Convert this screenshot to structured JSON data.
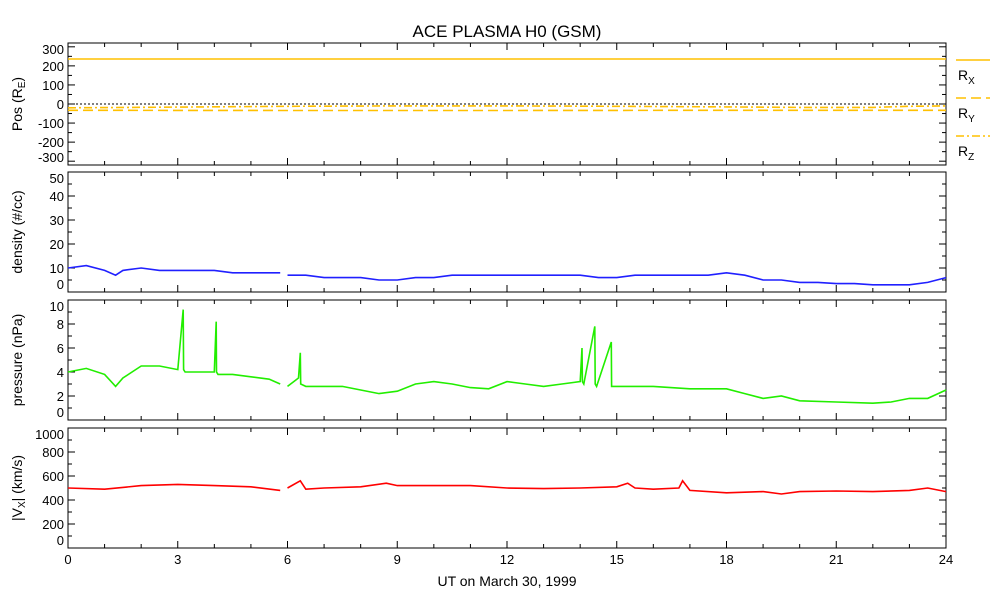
{
  "title": "ACE PLASMA H0 (GSM)",
  "xlabel": "UT on March 30, 1999",
  "chart_data": [
    {
      "type": "line",
      "ylabel": "Pos (R",
      "ylabel_sub": "E",
      "ylabel_end": ")",
      "ylim": [
        -320,
        320
      ],
      "yticks": [
        300,
        200,
        100,
        0,
        -100,
        -200,
        -300
      ],
      "xlim": [
        0,
        24
      ],
      "xticks": [
        0,
        3,
        6,
        9,
        12,
        15,
        18,
        21,
        24
      ],
      "legend_placement": "right",
      "zero_line": true,
      "series": [
        {
          "name": "R",
          "sub": "X",
          "style": "solid",
          "color": "#ffc000",
          "x": [
            0,
            24
          ],
          "y": [
            236,
            236
          ]
        },
        {
          "name": "R",
          "sub": "Y",
          "style": "dashed",
          "color": "#ffc000",
          "x": [
            0,
            6,
            12,
            18,
            24
          ],
          "y": [
            -33,
            -34,
            -34,
            -33,
            -33
          ]
        },
        {
          "name": "R",
          "sub": "Z",
          "style": "dashdot",
          "color": "#ffc000",
          "x": [
            0,
            3,
            6,
            9,
            12,
            15,
            18,
            20,
            22,
            23,
            24
          ],
          "y": [
            -20,
            -16,
            -12,
            -10,
            -10,
            -12,
            -15,
            -18,
            -18,
            -12,
            -10
          ]
        }
      ]
    },
    {
      "type": "line",
      "ylabel": "density (#/cc)",
      "ylim": [
        0,
        50
      ],
      "yticks": [
        50,
        40,
        30,
        20,
        10,
        0
      ],
      "color": "#2020ff",
      "x": [
        0,
        0.5,
        1,
        1.3,
        1.5,
        2,
        2.5,
        3,
        3.5,
        4,
        4.5,
        5,
        5.5,
        5.8,
        null,
        6,
        6.5,
        7,
        7.5,
        8,
        8.5,
        9,
        9.5,
        10,
        10.5,
        11,
        11.5,
        12,
        12.5,
        13,
        13.5,
        14,
        14.5,
        15,
        15.5,
        16,
        16.5,
        17,
        17.5,
        18,
        18.5,
        19,
        19.5,
        20,
        20.5,
        21,
        21.5,
        22,
        22.5,
        23,
        23.5,
        24
      ],
      "y": [
        10,
        11,
        9,
        7,
        9,
        10,
        9,
        9,
        9,
        9,
        8,
        8,
        8,
        8,
        null,
        7,
        7,
        6,
        6,
        6,
        5,
        5,
        6,
        6,
        7,
        7,
        7,
        7,
        7,
        7,
        7,
        7,
        6,
        6,
        7,
        7,
        7,
        7,
        7,
        8,
        7,
        5,
        5,
        4,
        4,
        3.5,
        3.5,
        3,
        3,
        3,
        4,
        6
      ]
    },
    {
      "type": "line",
      "ylabel": "pressure (nPa)",
      "ylim": [
        0,
        10
      ],
      "yticks": [
        10,
        8,
        6,
        4,
        2,
        0
      ],
      "color": "#22ee00",
      "x": [
        0,
        0.5,
        1,
        1.3,
        1.5,
        2,
        2.5,
        3,
        3.15,
        3.16,
        3.2,
        3.5,
        4,
        4.05,
        4.06,
        4.1,
        4.5,
        5,
        5.5,
        5.8,
        null,
        6,
        6.3,
        6.35,
        6.36,
        6.5,
        7,
        7.5,
        8,
        8.5,
        9,
        9.5,
        10,
        10.5,
        11,
        11.5,
        12,
        12.5,
        13,
        13.5,
        14,
        14.05,
        14.06,
        14.1,
        14.4,
        14.41,
        14.45,
        14.85,
        14.86,
        14.9,
        15,
        16,
        17,
        18,
        18.5,
        19,
        19.5,
        20,
        21,
        22,
        22.5,
        23,
        23.5,
        24
      ],
      "y": [
        4,
        4.3,
        3.8,
        2.8,
        3.5,
        4.5,
        4.5,
        4.2,
        9.2,
        4.2,
        4,
        4,
        4,
        8.2,
        4,
        3.8,
        3.8,
        3.6,
        3.4,
        3,
        null,
        2.8,
        3.5,
        5.6,
        3,
        2.8,
        2.8,
        2.8,
        2.5,
        2.2,
        2.4,
        3,
        3.2,
        3,
        2.7,
        2.6,
        3.2,
        3,
        2.8,
        3,
        3.2,
        6,
        3.2,
        3,
        7.8,
        3,
        2.8,
        6.5,
        2.8,
        2.8,
        2.8,
        2.8,
        2.6,
        2.6,
        2.2,
        1.8,
        2,
        1.6,
        1.5,
        1.4,
        1.5,
        1.8,
        1.8,
        2.5
      ]
    },
    {
      "type": "line",
      "ylabel": "|V",
      "ylabel_sub": "X",
      "ylabel_end": "| (km/s)",
      "ylim": [
        0,
        1000
      ],
      "yticks": [
        1000,
        800,
        600,
        400,
        200,
        0
      ],
      "color": "#ff0000",
      "x": [
        0,
        1,
        2,
        3,
        4,
        5,
        5.8,
        null,
        6,
        6.35,
        6.5,
        7,
        8,
        8.7,
        9,
        10,
        11,
        12,
        13,
        14,
        15,
        15.3,
        15.5,
        16,
        16.7,
        16.8,
        17,
        18,
        19,
        19.5,
        20,
        21,
        22,
        23,
        23.5,
        24
      ],
      "y": [
        500,
        490,
        520,
        530,
        520,
        510,
        480,
        null,
        500,
        560,
        490,
        500,
        510,
        540,
        520,
        520,
        520,
        500,
        495,
        500,
        510,
        540,
        500,
        490,
        500,
        560,
        480,
        460,
        470,
        450,
        470,
        475,
        470,
        480,
        500,
        470
      ]
    }
  ]
}
